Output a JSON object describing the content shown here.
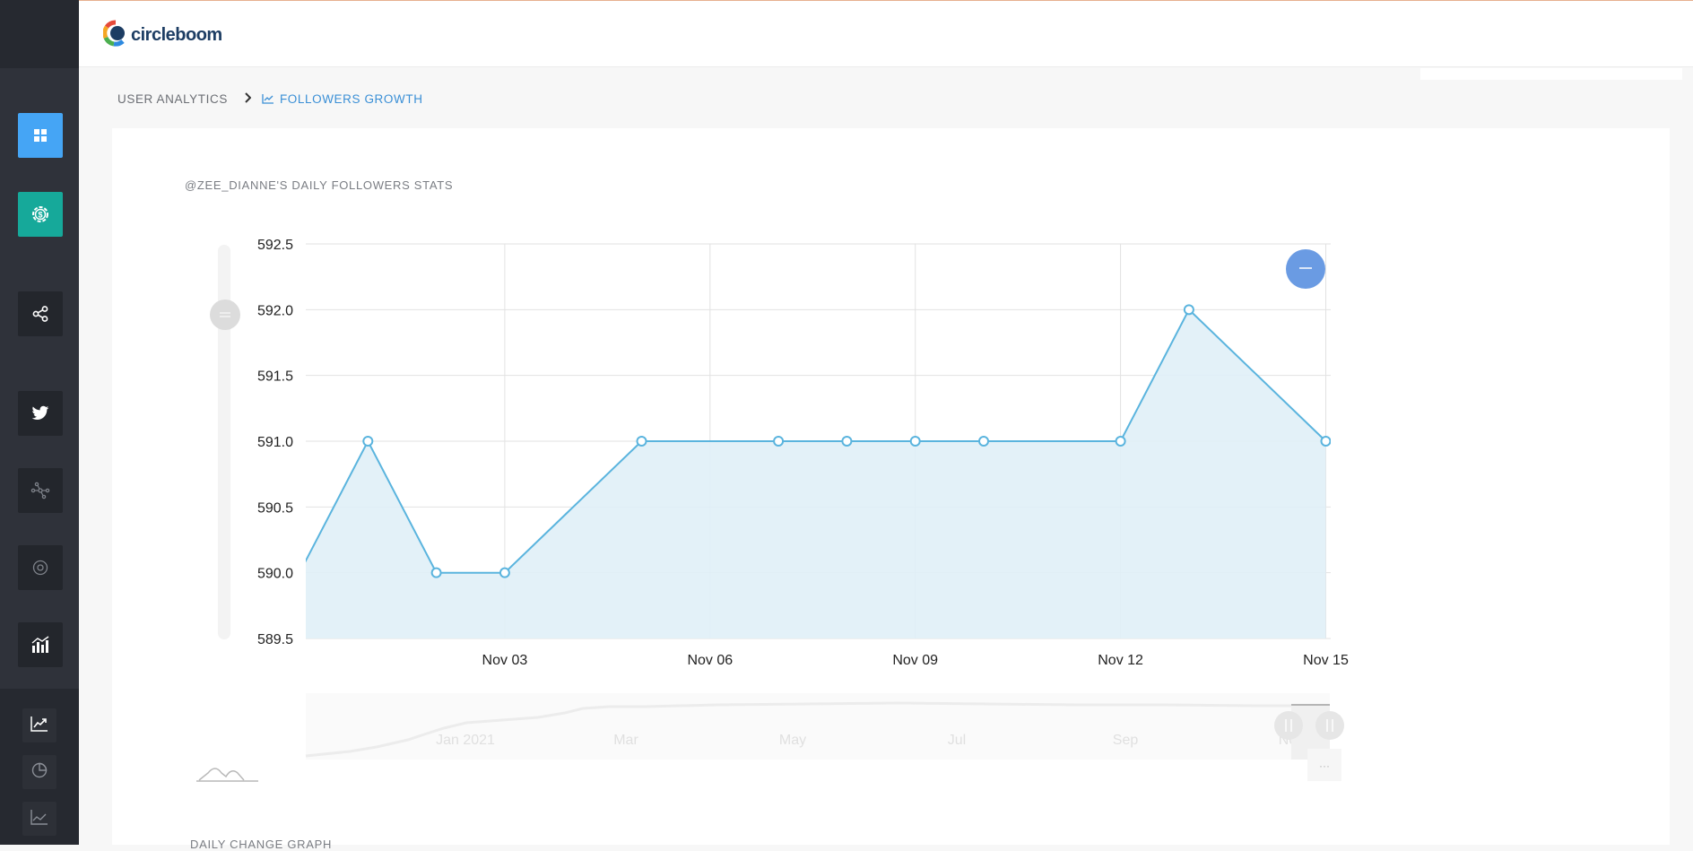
{
  "app": {
    "logo_text": "circleboom"
  },
  "breadcrumb": {
    "parent": "USER ANALYTICS",
    "current": "FOLLOWERS GROWTH"
  },
  "sidebar": {
    "items": [
      {
        "icon": "dashboard-icon"
      },
      {
        "icon": "dollar-gear-icon"
      },
      {
        "icon": "share-icon"
      },
      {
        "icon": "twitter-icon"
      },
      {
        "icon": "network-icon"
      },
      {
        "icon": "target-icon"
      },
      {
        "icon": "analytics-bars-icon"
      },
      {
        "icon": "line-chart-icon"
      },
      {
        "icon": "pie-chart-icon"
      },
      {
        "icon": "area-chart-icon"
      }
    ]
  },
  "chart_section": {
    "title": "@ZEE_DIANNE'S DAILY FOLLOWERS STATS"
  },
  "next_section": {
    "title": "DAILY CHANGE GRAPH"
  },
  "chart_data": {
    "type": "area",
    "ylim": [
      589.5,
      592.5
    ],
    "yticks": [
      "592.5",
      "592.0",
      "591.5",
      "591.0",
      "590.5",
      "590.0",
      "589.5"
    ],
    "xticks": [
      "Nov 03",
      "Nov 06",
      "Nov 09",
      "Nov 12",
      "Nov 15"
    ],
    "series": [
      {
        "x": [
          "Oct 31",
          "Nov 01",
          "Nov 02",
          "Nov 03",
          "Nov 04",
          "Nov 05",
          "Nov 06",
          "Nov 07",
          "Nov 08",
          "Nov 09",
          "Nov 10",
          "Nov 11",
          "Nov 12",
          "Nov 13",
          "Nov 14",
          "Nov 15"
        ],
        "values": [
          590.0,
          591.0,
          590.0,
          590.0,
          null,
          591.0,
          null,
          591.0,
          591.0,
          591.0,
          591.0,
          null,
          591.0,
          592.0,
          null,
          591.0
        ]
      }
    ],
    "navigator_ticks": [
      "Jan 2021",
      "Mar",
      "May",
      "Jul",
      "Sep",
      "Nov"
    ],
    "colors": {
      "line": "#5ab4de",
      "fill": "#e0f0f7",
      "zoom_button": "#6a9be3"
    }
  }
}
